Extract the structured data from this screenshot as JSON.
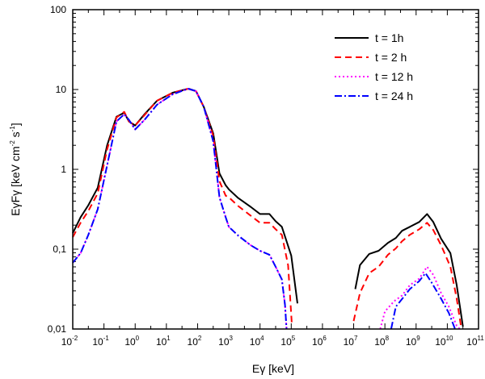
{
  "chart_data": {
    "type": "line",
    "title": "",
    "xlabel": "Eγ [keV]",
    "ylabel": "EγFγ [keV cm-2 s-1]",
    "x_scale": "log",
    "y_scale": "log",
    "xlim_exp": [
      -2,
      11
    ],
    "ylim_exp": [
      -2,
      2
    ],
    "x_tick_labels": [
      {
        "base": "10",
        "exp": "-2"
      },
      {
        "base": "10",
        "exp": "-1"
      },
      {
        "base": "10",
        "exp": "0"
      },
      {
        "base": "10",
        "exp": "1"
      },
      {
        "base": "10",
        "exp": "2"
      },
      {
        "base": "10",
        "exp": "3"
      },
      {
        "base": "10",
        "exp": "4"
      },
      {
        "base": "10",
        "exp": "5"
      },
      {
        "base": "10",
        "exp": "6"
      },
      {
        "base": "10",
        "exp": "7"
      },
      {
        "base": "10",
        "exp": "8"
      },
      {
        "base": "10",
        "exp": "9"
      },
      {
        "base": "10",
        "exp": "10"
      },
      {
        "base": "10",
        "exp": "11"
      }
    ],
    "y_tick_labels": [
      "0,01",
      "0,1",
      "1",
      "10",
      "100"
    ],
    "legend_position": "top-right",
    "series": [
      {
        "name": "t = 1h",
        "color": "#000000",
        "dash": "solid",
        "segments": [
          [
            [
              -2.0,
              -0.8
            ],
            [
              -1.75,
              -0.6
            ],
            [
              -1.5,
              -0.45
            ],
            [
              -1.2,
              -0.23
            ],
            [
              -0.9,
              0.3
            ],
            [
              -0.6,
              0.66
            ],
            [
              -0.35,
              0.71
            ],
            [
              -0.2,
              0.6
            ],
            [
              0.0,
              0.55
            ],
            [
              0.3,
              0.69
            ],
            [
              0.7,
              0.86
            ],
            [
              1.2,
              0.96
            ],
            [
              1.7,
              1.01
            ],
            [
              1.95,
              0.98
            ],
            [
              2.2,
              0.78
            ],
            [
              2.5,
              0.45
            ],
            [
              2.7,
              -0.05
            ],
            [
              2.9,
              -0.2
            ],
            [
              3.0,
              -0.25
            ],
            [
              3.3,
              -0.36
            ],
            [
              3.7,
              -0.47
            ],
            [
              4.0,
              -0.56
            ],
            [
              4.3,
              -0.56
            ],
            [
              4.5,
              -0.65
            ],
            [
              4.7,
              -0.72
            ],
            [
              5.0,
              -1.08
            ],
            [
              5.2,
              -1.68
            ]
          ],
          [
            [
              7.05,
              -1.5
            ],
            [
              7.2,
              -1.2
            ],
            [
              7.5,
              -1.06
            ],
            [
              7.8,
              -1.02
            ],
            [
              8.1,
              -0.92
            ],
            [
              8.35,
              -0.86
            ],
            [
              8.55,
              -0.77
            ],
            [
              8.8,
              -0.72
            ],
            [
              9.1,
              -0.66
            ],
            [
              9.35,
              -0.56
            ],
            [
              9.55,
              -0.66
            ],
            [
              9.8,
              -0.87
            ],
            [
              10.1,
              -1.05
            ],
            [
              10.3,
              -1.45
            ],
            [
              10.5,
              -1.97
            ]
          ]
        ]
      },
      {
        "name": "t = 2 h",
        "color": "#ff0000",
        "dash": "8,5",
        "segments": [
          [
            [
              -2.0,
              -0.85
            ],
            [
              -1.75,
              -0.67
            ],
            [
              -1.5,
              -0.52
            ],
            [
              -1.2,
              -0.3
            ],
            [
              -0.9,
              0.25
            ],
            [
              -0.6,
              0.65
            ],
            [
              -0.35,
              0.72
            ],
            [
              -0.2,
              0.6
            ],
            [
              0.0,
              0.55
            ],
            [
              0.3,
              0.68
            ],
            [
              0.7,
              0.86
            ],
            [
              1.2,
              0.96
            ],
            [
              1.7,
              1.01
            ],
            [
              1.95,
              0.98
            ],
            [
              2.2,
              0.78
            ],
            [
              2.5,
              0.42
            ],
            [
              2.7,
              -0.15
            ],
            [
              2.9,
              -0.33
            ],
            [
              3.0,
              -0.35
            ],
            [
              3.3,
              -0.46
            ],
            [
              3.7,
              -0.58
            ],
            [
              4.0,
              -0.67
            ],
            [
              4.3,
              -0.67
            ],
            [
              4.5,
              -0.75
            ],
            [
              4.7,
              -0.82
            ],
            [
              4.9,
              -1.2
            ],
            [
              5.02,
              -1.95
            ]
          ],
          [
            [
              7.0,
              -1.9
            ],
            [
              7.2,
              -1.55
            ],
            [
              7.5,
              -1.3
            ],
            [
              7.8,
              -1.22
            ],
            [
              8.1,
              -1.07
            ],
            [
              8.35,
              -0.99
            ],
            [
              8.55,
              -0.9
            ],
            [
              8.8,
              -0.82
            ],
            [
              9.1,
              -0.75
            ],
            [
              9.35,
              -0.67
            ],
            [
              9.55,
              -0.76
            ],
            [
              9.8,
              -0.95
            ],
            [
              10.1,
              -1.22
            ],
            [
              10.3,
              -1.62
            ],
            [
              10.45,
              -2.0
            ]
          ]
        ]
      },
      {
        "name": "t = 12 h",
        "color": "#ff00ff",
        "dash": "2,3",
        "segments": [
          [
            [
              -2.0,
              -1.17
            ],
            [
              -1.75,
              -1.05
            ],
            [
              -1.5,
              -0.82
            ],
            [
              -1.2,
              -0.5
            ],
            [
              -0.9,
              0.05
            ],
            [
              -0.6,
              0.6
            ],
            [
              -0.35,
              0.69
            ],
            [
              -0.2,
              0.62
            ],
            [
              0.0,
              0.5
            ],
            [
              0.3,
              0.62
            ],
            [
              0.7,
              0.81
            ],
            [
              1.2,
              0.94
            ],
            [
              1.7,
              1.01
            ],
            [
              1.95,
              0.98
            ],
            [
              2.2,
              0.78
            ],
            [
              2.5,
              0.35
            ],
            [
              2.7,
              -0.35
            ],
            [
              2.9,
              -0.6
            ],
            [
              3.0,
              -0.72
            ],
            [
              3.3,
              -0.83
            ],
            [
              3.7,
              -0.95
            ],
            [
              4.0,
              -1.02
            ],
            [
              4.3,
              -1.07
            ],
            [
              4.5,
              -1.22
            ],
            [
              4.7,
              -1.38
            ],
            [
              4.8,
              -1.7
            ],
            [
              4.85,
              -2.0
            ]
          ],
          [
            [
              7.85,
              -2.0
            ],
            [
              8.0,
              -1.78
            ],
            [
              8.3,
              -1.65
            ],
            [
              8.55,
              -1.58
            ],
            [
              8.8,
              -1.45
            ],
            [
              9.1,
              -1.37
            ],
            [
              9.35,
              -1.22
            ],
            [
              9.55,
              -1.32
            ],
            [
              9.8,
              -1.55
            ],
            [
              10.05,
              -1.72
            ],
            [
              10.3,
              -1.96
            ],
            [
              10.4,
              -2.0
            ]
          ]
        ]
      },
      {
        "name": "t = 24 h",
        "color": "#0000ff",
        "dash": "9,3,2,3",
        "segments": [
          [
            [
              -2.0,
              -1.17
            ],
            [
              -1.75,
              -1.05
            ],
            [
              -1.5,
              -0.82
            ],
            [
              -1.2,
              -0.5
            ],
            [
              -0.9,
              0.05
            ],
            [
              -0.6,
              0.6
            ],
            [
              -0.35,
              0.69
            ],
            [
              -0.2,
              0.62
            ],
            [
              0.0,
              0.5
            ],
            [
              0.3,
              0.62
            ],
            [
              0.7,
              0.81
            ],
            [
              1.2,
              0.94
            ],
            [
              1.7,
              1.01
            ],
            [
              1.95,
              0.98
            ],
            [
              2.2,
              0.78
            ],
            [
              2.5,
              0.35
            ],
            [
              2.7,
              -0.35
            ],
            [
              2.9,
              -0.6
            ],
            [
              3.0,
              -0.72
            ],
            [
              3.3,
              -0.83
            ],
            [
              3.7,
              -0.95
            ],
            [
              4.0,
              -1.02
            ],
            [
              4.3,
              -1.07
            ],
            [
              4.5,
              -1.22
            ],
            [
              4.7,
              -1.38
            ],
            [
              4.8,
              -1.7
            ],
            [
              4.85,
              -2.0
            ]
          ],
          [
            [
              8.2,
              -2.0
            ],
            [
              8.35,
              -1.72
            ],
            [
              8.6,
              -1.6
            ],
            [
              8.8,
              -1.5
            ],
            [
              9.1,
              -1.4
            ],
            [
              9.3,
              -1.3
            ],
            [
              9.5,
              -1.42
            ],
            [
              9.8,
              -1.62
            ],
            [
              10.05,
              -1.8
            ],
            [
              10.25,
              -2.0
            ]
          ]
        ]
      }
    ]
  }
}
